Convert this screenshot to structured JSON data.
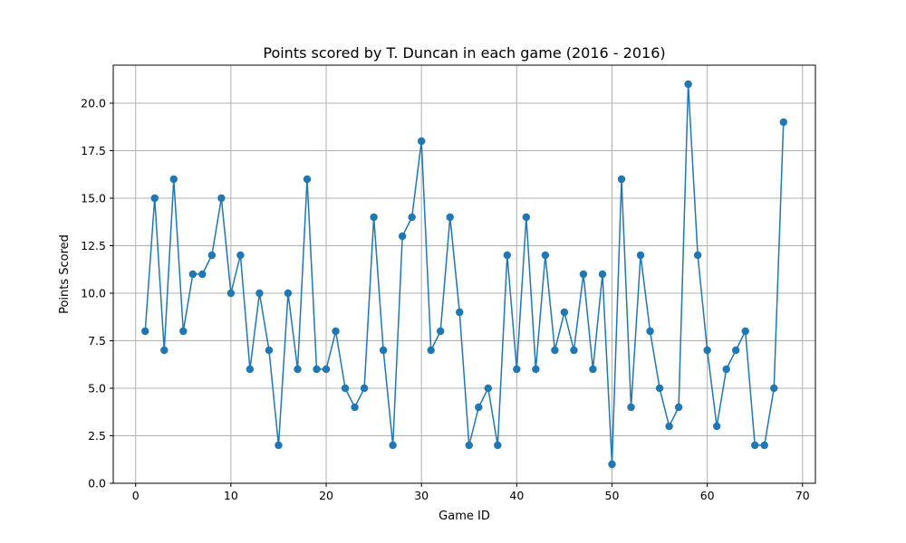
{
  "chart_data": {
    "type": "line",
    "title": "Points scored by T. Duncan in each game (2016 - 2016)",
    "xlabel": "Game ID",
    "ylabel": "Points Scored",
    "xlim": [
      -2.35,
      71.35
    ],
    "ylim": [
      0,
      22
    ],
    "xticks": [
      0,
      10,
      20,
      30,
      40,
      50,
      60,
      70
    ],
    "yticks": [
      0.0,
      2.5,
      5.0,
      7.5,
      10.0,
      12.5,
      15.0,
      17.5,
      20.0
    ],
    "grid": true,
    "legend": "none",
    "series": [
      {
        "color": "#1f77b4",
        "marker": "circle",
        "x": [
          1,
          2,
          3,
          4,
          5,
          6,
          7,
          8,
          9,
          10,
          11,
          12,
          13,
          14,
          15,
          16,
          17,
          18,
          19,
          20,
          21,
          22,
          23,
          24,
          25,
          26,
          27,
          28,
          29,
          30,
          31,
          32,
          33,
          34,
          35,
          36,
          37,
          38,
          39,
          40,
          41,
          42,
          43,
          44,
          45,
          46,
          47,
          48,
          49,
          50,
          51,
          52,
          53,
          54,
          55,
          56,
          57,
          58,
          59,
          60,
          61,
          62,
          63,
          64,
          65,
          66,
          67,
          68
        ],
        "y": [
          8,
          15,
          7,
          16,
          8,
          11,
          11,
          12,
          15,
          10,
          12,
          6,
          10,
          7,
          2,
          10,
          6,
          16,
          6,
          6,
          8,
          5,
          4,
          5,
          14,
          7,
          2,
          13,
          14,
          18,
          7,
          8,
          14,
          9,
          2,
          4,
          5,
          2,
          12,
          6,
          14,
          6,
          12,
          7,
          9,
          7,
          11,
          6,
          11,
          1,
          16,
          4,
          12,
          8,
          5,
          3,
          4,
          21,
          12,
          7,
          3,
          6,
          7,
          8,
          2,
          2,
          5,
          19
        ]
      }
    ]
  }
}
